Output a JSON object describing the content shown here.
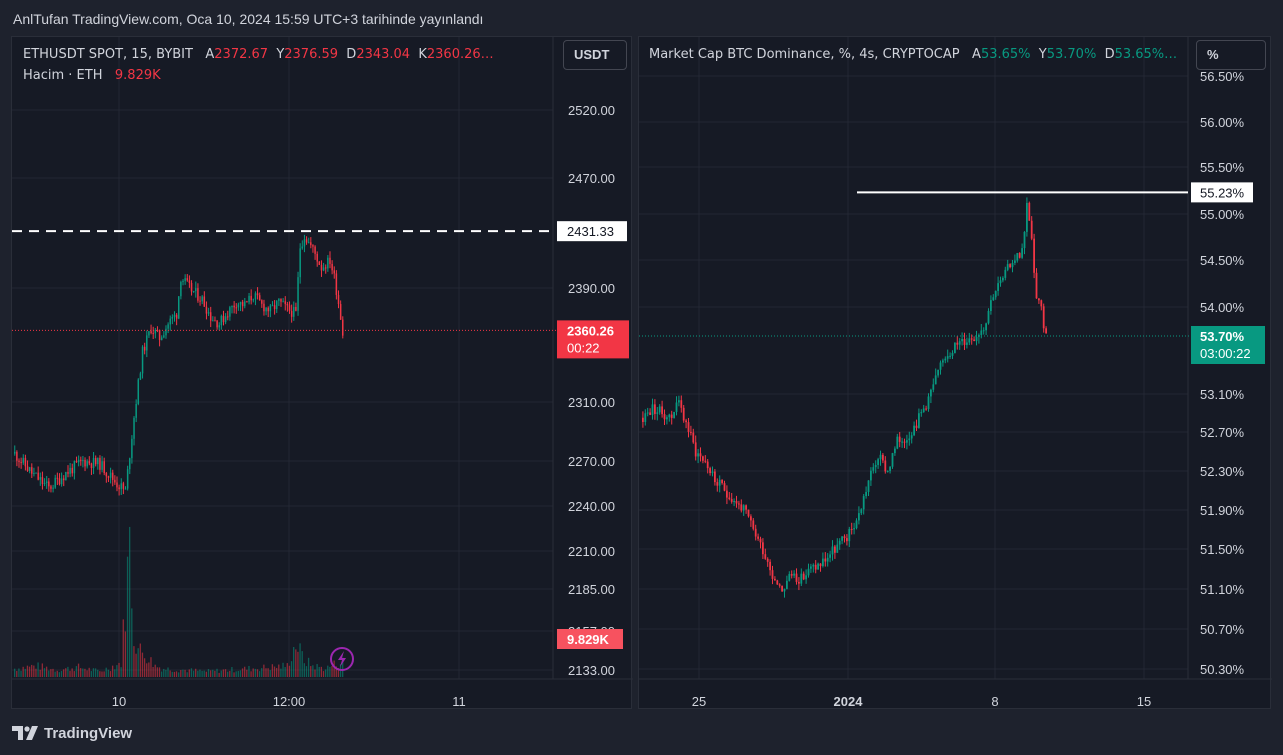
{
  "header": {
    "caption": "AnlTufan TradingView.com, Oca 10, 2024 15:59 UTC+3 tarihinde yayınlandı"
  },
  "footer": {
    "brand": "TradingView"
  },
  "colors": {
    "up": "#089981",
    "down": "#f23645",
    "bg": "#161a25",
    "grid": "#232733",
    "text": "#d1d4dc"
  },
  "left": {
    "legend": {
      "symbol": "ETHUSDT SPOT, 15, BYBIT",
      "a_label": "A",
      "a_value": "2372.67",
      "y_label": "Y",
      "y_value": "2376.59",
      "d_label": "D",
      "d_value": "2343.04",
      "k_label": "K",
      "k_value": "2360.26…",
      "volume_label": "Hacim · ETH",
      "volume_value": "9.829K"
    },
    "unit_button": "USDT",
    "price_labels": {
      "dashed_level": "2431.33",
      "last_price": "2360.26",
      "countdown": "00:22",
      "volume": "9.829K"
    },
    "y_ticks": [
      "2520.00",
      "2470.00",
      "2390.00",
      "2310.00",
      "2270.00",
      "2240.00",
      "2210.00",
      "2185.00",
      "2157.00",
      "2133.00"
    ],
    "x_ticks": [
      "10",
      "12:00",
      "11"
    ],
    "icon": "lightning-icon"
  },
  "right": {
    "legend": {
      "symbol": "Market Cap BTC Dominance, %, 4s, CRYPTOCAP",
      "a_label": "A",
      "a_value": "53.65%",
      "y_label": "Y",
      "y_value": "53.70%",
      "d_label": "D",
      "d_value": "53.65%…"
    },
    "unit_button": "%",
    "price_labels": {
      "resistance": "55.23%",
      "last_price": "53.70%",
      "countdown": "03:00:22"
    },
    "y_ticks": [
      "56.50%",
      "56.00%",
      "55.50%",
      "55.00%",
      "54.50%",
      "54.00%",
      "53.10%",
      "52.70%",
      "52.30%",
      "51.90%",
      "51.50%",
      "51.10%",
      "50.70%",
      "50.30%"
    ],
    "x_ticks": [
      "25",
      "2024",
      "8",
      "15"
    ]
  },
  "chart_data": [
    {
      "type": "candlestick",
      "title": "ETHUSDT SPOT, 15, BYBIT",
      "ylim": [
        2133,
        2545
      ],
      "y_scale": "nonlinear (as printed)",
      "grid": true,
      "reference_lines": [
        {
          "value": 2431.33,
          "style": "dashed"
        },
        {
          "value": 2360.26,
          "style": "dotted"
        }
      ],
      "x": [
        "10",
        "12:00",
        "11"
      ],
      "close_path": [
        [
          0,
          2275
        ],
        [
          8,
          2262
        ],
        [
          16,
          2252
        ],
        [
          24,
          2262
        ],
        [
          32,
          2270
        ],
        [
          40,
          2268
        ],
        [
          48,
          2255
        ],
        [
          52,
          2250
        ],
        [
          56,
          2300
        ],
        [
          60,
          2345
        ],
        [
          64,
          2362
        ],
        [
          68,
          2355
        ],
        [
          72,
          2365
        ],
        [
          76,
          2372
        ],
        [
          78,
          2398
        ],
        [
          82,
          2390
        ],
        [
          88,
          2382
        ],
        [
          92,
          2370
        ],
        [
          96,
          2365
        ],
        [
          100,
          2373
        ],
        [
          104,
          2380
        ],
        [
          108,
          2378
        ],
        [
          112,
          2385
        ],
        [
          116,
          2378
        ],
        [
          120,
          2374
        ],
        [
          124,
          2380
        ],
        [
          128,
          2375
        ],
        [
          132,
          2372
        ],
        [
          134,
          2420
        ],
        [
          136,
          2428
        ],
        [
          140,
          2418
        ],
        [
          144,
          2405
        ],
        [
          148,
          2410
        ],
        [
          150,
          2398
        ],
        [
          152,
          2380
        ],
        [
          154,
          2360
        ]
      ],
      "volume_series": [
        [
          0,
          0.6
        ],
        [
          10,
          0.8
        ],
        [
          20,
          0.5
        ],
        [
          30,
          0.7
        ],
        [
          40,
          0.4
        ],
        [
          50,
          1.0
        ],
        [
          54,
          9.5
        ],
        [
          56,
          3.0
        ],
        [
          58,
          2.0
        ],
        [
          62,
          1.5
        ],
        [
          66,
          0.8
        ],
        [
          70,
          0.6
        ],
        [
          80,
          0.5
        ],
        [
          90,
          0.4
        ],
        [
          100,
          0.5
        ],
        [
          110,
          0.6
        ],
        [
          120,
          0.7
        ],
        [
          128,
          0.8
        ],
        [
          132,
          2.4
        ],
        [
          136,
          1.2
        ],
        [
          140,
          0.8
        ],
        [
          146,
          0.6
        ],
        [
          150,
          0.9
        ],
        [
          154,
          1.1
        ]
      ]
    },
    {
      "type": "candlestick",
      "title": "Market Cap BTC Dominance, %, 4s, CRYPTOCAP",
      "ylim": [
        50.1,
        56.6
      ],
      "y_scale": "nonlinear (as printed)",
      "grid": true,
      "reference_lines": [
        {
          "value": 55.23,
          "style": "solid"
        },
        {
          "value": 53.7,
          "style": "dotted"
        }
      ],
      "x": [
        "25",
        "2024",
        "8",
        "15"
      ],
      "close_path": [
        [
          0,
          52.85
        ],
        [
          4,
          52.95
        ],
        [
          8,
          52.9
        ],
        [
          12,
          52.85
        ],
        [
          14,
          53.05
        ],
        [
          18,
          52.8
        ],
        [
          22,
          52.5
        ],
        [
          26,
          52.4
        ],
        [
          30,
          52.2
        ],
        [
          34,
          52.1
        ],
        [
          38,
          52.0
        ],
        [
          42,
          51.9
        ],
        [
          46,
          51.7
        ],
        [
          50,
          51.5
        ],
        [
          54,
          51.25
        ],
        [
          58,
          51.1
        ],
        [
          62,
          51.25
        ],
        [
          66,
          51.2
        ],
        [
          70,
          51.3
        ],
        [
          74,
          51.35
        ],
        [
          78,
          51.45
        ],
        [
          82,
          51.55
        ],
        [
          86,
          51.65
        ],
        [
          90,
          51.85
        ],
        [
          94,
          52.2
        ],
        [
          98,
          52.45
        ],
        [
          102,
          52.3
        ],
        [
          106,
          52.6
        ],
        [
          110,
          52.65
        ],
        [
          114,
          52.8
        ],
        [
          118,
          53.0
        ],
        [
          122,
          53.25
        ],
        [
          126,
          53.5
        ],
        [
          130,
          53.6
        ],
        [
          134,
          53.65
        ],
        [
          138,
          53.7
        ],
        [
          142,
          53.8
        ],
        [
          146,
          54.15
        ],
        [
          150,
          54.3
        ],
        [
          154,
          54.5
        ],
        [
          158,
          54.6
        ],
        [
          160,
          55.1
        ],
        [
          162,
          54.7
        ],
        [
          164,
          54.1
        ],
        [
          166,
          53.95
        ],
        [
          168,
          53.7
        ]
      ]
    }
  ]
}
